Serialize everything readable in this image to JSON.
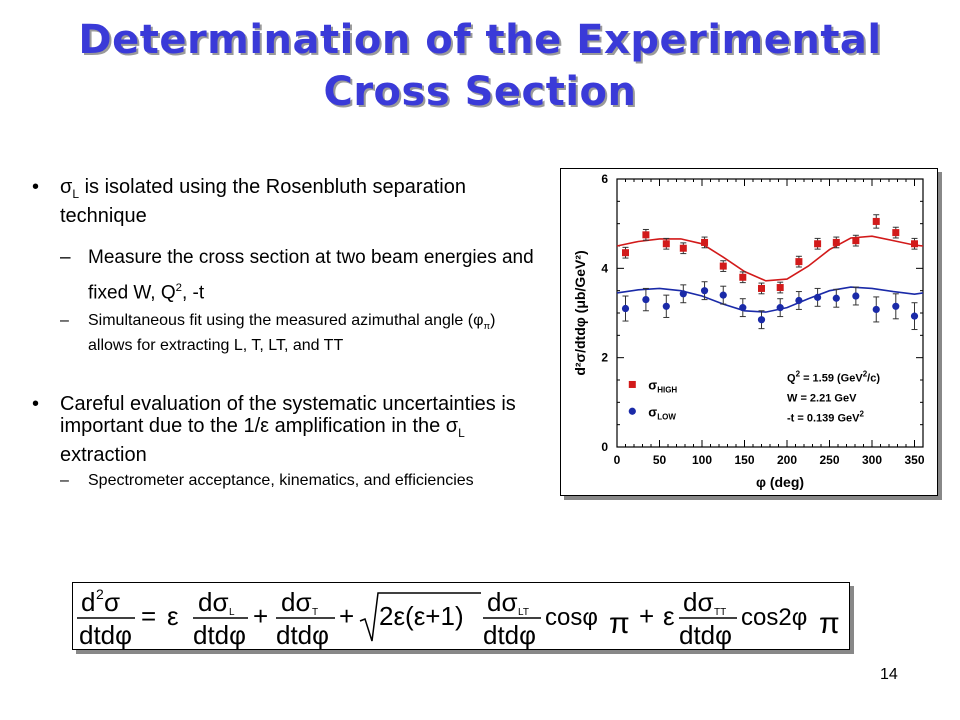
{
  "slide": {
    "title_line1": "Determination of the Experimental",
    "title_line2": "Cross Section",
    "page_number": "14",
    "colors": {
      "title": "#3a3ad8",
      "high_series": "#d21a1a",
      "low_series": "#1a2aa8"
    }
  },
  "bullets": {
    "b1": {
      "pre": "σ",
      "sub": "L",
      "text": " is isolated using the Rosenbluth separation  technique"
    },
    "b1_1": {
      "text1": "Measure the cross section at two beam energies and fixed W, Q",
      "sup": "2",
      "text2": ", -t"
    },
    "b1_2": {
      "text1": "Simultaneous fit using the measured azimuthal angle (φ",
      "sub": "π",
      "text2": ") allows for extracting L, T, LT, and TT"
    },
    "b2": {
      "text1": "Careful evaluation of the systematic uncertainties is important due to the 1/ε amplification in the σ",
      "sub": "L",
      "text2": " extraction"
    },
    "b2_1": {
      "text": "Spectrometer acceptance, kinematics, and efficiencies"
    }
  },
  "chart_data": {
    "type": "scatter",
    "xlabel": "φ (deg)",
    "ylabel": "d²σ/dtdφ (μb/GeV²)",
    "xlim": [
      0,
      360
    ],
    "ylim": [
      0,
      6
    ],
    "xticks": [
      0,
      50,
      100,
      150,
      200,
      250,
      300,
      350
    ],
    "yticks": [
      0,
      2,
      4,
      6
    ],
    "series": [
      {
        "name": "σHIGH",
        "label_main": "σ",
        "label_sub": "HIGH",
        "marker": "square",
        "color": "#d21a1a",
        "x": [
          10,
          34,
          58,
          78,
          103,
          125,
          148,
          170,
          192,
          214,
          236,
          258,
          281,
          305,
          328,
          350
        ],
        "y": [
          4.35,
          4.75,
          4.55,
          4.45,
          4.58,
          4.05,
          3.8,
          3.55,
          3.57,
          4.15,
          4.55,
          4.58,
          4.62,
          5.05,
          4.8,
          4.55
        ],
        "err": [
          0.12,
          0.12,
          0.12,
          0.12,
          0.12,
          0.12,
          0.12,
          0.12,
          0.12,
          0.12,
          0.12,
          0.12,
          0.12,
          0.15,
          0.12,
          0.12
        ],
        "fit_x": [
          0,
          25,
          50,
          75,
          100,
          125,
          150,
          175,
          200,
          225,
          250,
          275,
          300,
          325,
          350,
          360
        ],
        "fit_y": [
          4.5,
          4.6,
          4.66,
          4.66,
          4.55,
          4.25,
          3.93,
          3.72,
          3.76,
          4.05,
          4.42,
          4.68,
          4.72,
          4.62,
          4.52,
          4.5
        ]
      },
      {
        "name": "σLOW",
        "label_main": "σ",
        "label_sub": "LOW",
        "marker": "circle",
        "color": "#1a2aa8",
        "x": [
          10,
          34,
          58,
          78,
          103,
          125,
          148,
          170,
          192,
          214,
          236,
          258,
          281,
          305,
          328,
          350
        ],
        "y": [
          3.1,
          3.3,
          3.15,
          3.43,
          3.5,
          3.4,
          3.12,
          2.85,
          3.12,
          3.28,
          3.35,
          3.33,
          3.38,
          3.08,
          3.15,
          2.93
        ],
        "err": [
          0.28,
          0.25,
          0.25,
          0.2,
          0.2,
          0.2,
          0.2,
          0.2,
          0.2,
          0.2,
          0.2,
          0.2,
          0.2,
          0.28,
          0.28,
          0.3
        ],
        "fit_x": [
          0,
          25,
          50,
          75,
          100,
          125,
          150,
          175,
          200,
          225,
          250,
          275,
          300,
          325,
          350,
          360
        ],
        "fit_y": [
          3.45,
          3.52,
          3.55,
          3.5,
          3.38,
          3.2,
          3.05,
          3.02,
          3.12,
          3.32,
          3.5,
          3.58,
          3.55,
          3.48,
          3.42,
          3.45
        ]
      }
    ],
    "annotations": [
      {
        "main": "Q",
        "sup": "2",
        "rest": " = 1.59 (GeV",
        "sup2": "2",
        "rest2": "/c)"
      },
      {
        "main": "W",
        "sup": "",
        "rest": "   = 2.21 GeV",
        "sup2": "",
        "rest2": ""
      },
      {
        "main": "-t",
        "sup": "",
        "rest": "   = 0.139 GeV",
        "sup2": "2",
        "rest2": ""
      }
    ]
  },
  "equation": {
    "lhs_num_d": "d",
    "lhs_num_sup": "2",
    "lhs_num_sigma": "σ",
    "lhs_den": "dtdφ",
    "eq": "=",
    "eps": "ε",
    "frac_num_d": "dσ",
    "sub_L": "L",
    "sub_T": "T",
    "sub_LT": "LT",
    "sub_TT": "TT",
    "frac_den": "dtdφ",
    "plus": "+",
    "sqrt_content": "2ε(ε+1)",
    "cos1": "cosφ",
    "cos2": "cos2φ",
    "pi": "π"
  }
}
